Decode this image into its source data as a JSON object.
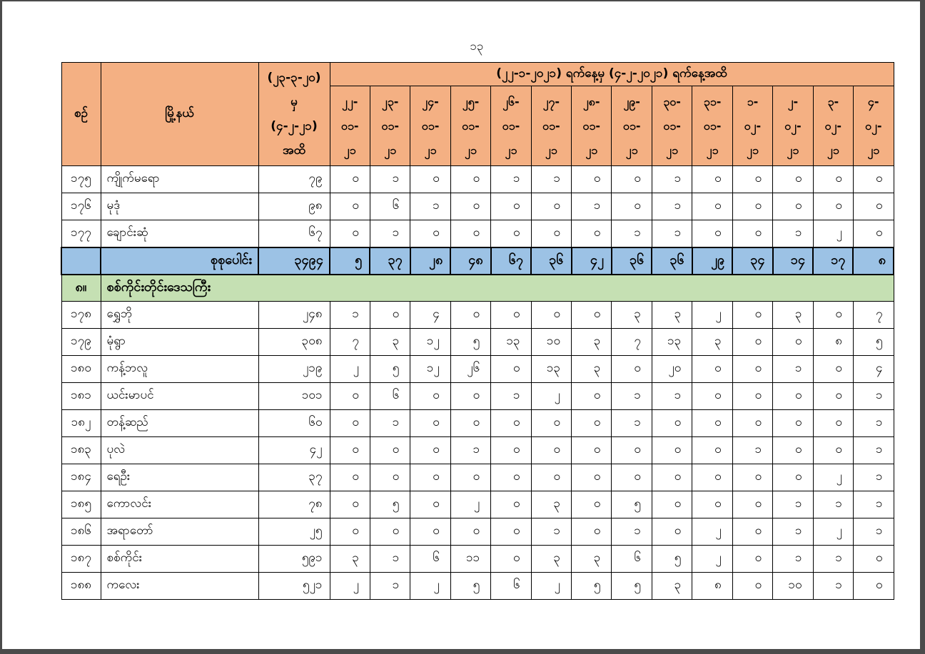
{
  "page": {
    "number": "၁၃"
  },
  "colors": {
    "header_bg": "#F4B083",
    "total_bg": "#9CC2E5",
    "section_bg": "#C5E0B3",
    "border": "#000000",
    "frame": "#4B4B4B"
  },
  "table": {
    "header": {
      "serial": "စဉ်",
      "township": "မြို့နယ်",
      "cumulative_lines": [
        "(၂၃-၃-၂၀)",
        "မှ",
        "(၄-၂-၂၁)",
        "အထိ"
      ],
      "date_range_title": "(၂၂-၁-၂၀၂၁) ရက်နေ့မှ (၄-၂-၂၀၂၁) ရက်နေ့အထိ",
      "dates": [
        [
          "၂၂-",
          "၀၁-",
          "၂၁"
        ],
        [
          "၂၃-",
          "၀၁-",
          "၂၁"
        ],
        [
          "၂၄-",
          "၀၁-",
          "၂၁"
        ],
        [
          "၂၅-",
          "၀၁-",
          "၂၁"
        ],
        [
          "၂၆-",
          "၀၁-",
          "၂၁"
        ],
        [
          "၂၇-",
          "၀၁-",
          "၂၁"
        ],
        [
          "၂၈-",
          "၀၁-",
          "၂၁"
        ],
        [
          "၂၉-",
          "၀၁-",
          "၂၁"
        ],
        [
          "၃၀-",
          "၀၁-",
          "၂၁"
        ],
        [
          "၃၁-",
          "၀၁-",
          "၂၁"
        ],
        [
          "၁-",
          "၀၂-",
          "၂၁"
        ],
        [
          "၂-",
          "၀၂-",
          "၂၁"
        ],
        [
          "၃-",
          "၀၂-",
          "၂၁"
        ],
        [
          "၄-",
          "၀၂-",
          "၂၁"
        ]
      ]
    },
    "body": [
      {
        "type": "row",
        "no": "၁၇၅",
        "township": "ကျိုက်မရော",
        "cumulative": "၇၉",
        "daily": [
          "၀",
          "၁",
          "၀",
          "၀",
          "၁",
          "၁",
          "၀",
          "၀",
          "၁",
          "၀",
          "၀",
          "၀",
          "၀",
          "၀"
        ]
      },
      {
        "type": "row",
        "no": "၁၇၆",
        "township": "မုဒုံ",
        "cumulative": "၉၈",
        "daily": [
          "၀",
          "၆",
          "၁",
          "၀",
          "၀",
          "၀",
          "၁",
          "၀",
          "၁",
          "၀",
          "၀",
          "၀",
          "၀",
          "၀"
        ]
      },
      {
        "type": "row",
        "no": "၁၇၇",
        "township": "ချောင်းဆုံ",
        "cumulative": "၆၇",
        "daily": [
          "၀",
          "၁",
          "၀",
          "၀",
          "၀",
          "၀",
          "၀",
          "၁",
          "၁",
          "၀",
          "၀",
          "၁",
          "၂",
          "၀"
        ]
      },
      {
        "type": "total",
        "label": "စုစုပေါင်း",
        "cumulative": "၃၄၉၄",
        "daily": [
          "၅",
          "၃၇",
          "၂၈",
          "၄၈",
          "၆၇",
          "၃၆",
          "၄၂",
          "၃၆",
          "၃၆",
          "၂၉",
          "၃၄",
          "၁၄",
          "၁၇",
          "၈"
        ]
      },
      {
        "type": "section",
        "no": "၈။",
        "label": "စစ်ကိုင်းတိုင်းဒေသကြီး"
      },
      {
        "type": "row",
        "no": "၁၇၈",
        "township": "ရွှေဘို",
        "cumulative": "၂၄၈",
        "daily": [
          "၁",
          "၀",
          "၄",
          "၀",
          "၀",
          "၀",
          "၀",
          "၃",
          "၃",
          "၂",
          "၀",
          "၃",
          "၀",
          "၇"
        ]
      },
      {
        "type": "row",
        "no": "၁၇၉",
        "township": "မုံရွာ",
        "cumulative": "၃၀၈",
        "daily": [
          "၇",
          "၃",
          "၁၂",
          "၅",
          "၁၃",
          "၁၀",
          "၃",
          "၇",
          "၁၃",
          "၃",
          "၀",
          "၀",
          "၈",
          "၅"
        ]
      },
      {
        "type": "row",
        "no": "၁၈၀",
        "township": "ကန့်ဘလူ",
        "cumulative": "၂၁၉",
        "daily": [
          "၂",
          "၅",
          "၁၂",
          "၂၆",
          "၀",
          "၁၃",
          "၃",
          "၀",
          "၂၀",
          "၀",
          "၀",
          "၁",
          "၀",
          "၄"
        ]
      },
      {
        "type": "row",
        "no": "၁၈၁",
        "township": "ယင်းမာပင်",
        "cumulative": "၁၀၁",
        "daily": [
          "၀",
          "၆",
          "၀",
          "၀",
          "၁",
          "၂",
          "၀",
          "၁",
          "၁",
          "၀",
          "၀",
          "၀",
          "၀",
          "၁"
        ]
      },
      {
        "type": "row",
        "no": "၁၈၂",
        "township": "တန့်ဆည်",
        "cumulative": "၆၀",
        "daily": [
          "၀",
          "၁",
          "၀",
          "၀",
          "၀",
          "၀",
          "၀",
          "၁",
          "၀",
          "၀",
          "၀",
          "၀",
          "၀",
          "၁"
        ]
      },
      {
        "type": "row",
        "no": "၁၈၃",
        "township": "ပုလဲ",
        "cumulative": "၄၂",
        "daily": [
          "၀",
          "၀",
          "၀",
          "၁",
          "၀",
          "၀",
          "၀",
          "၀",
          "၀",
          "၀",
          "၁",
          "၀",
          "၀",
          "၁"
        ]
      },
      {
        "type": "row",
        "no": "၁၈၄",
        "township": "ရေဦး",
        "cumulative": "၃၇",
        "daily": [
          "၀",
          "၀",
          "၀",
          "၀",
          "၀",
          "၀",
          "၀",
          "၀",
          "၀",
          "၀",
          "၀",
          "၀",
          "၂",
          "၁"
        ]
      },
      {
        "type": "row",
        "no": "၁၈၅",
        "township": "ကောလင်း",
        "cumulative": "၇၈",
        "daily": [
          "၀",
          "၅",
          "၀",
          "၂",
          "၀",
          "၃",
          "၀",
          "၅",
          "၀",
          "၀",
          "၀",
          "၁",
          "၁",
          "၁"
        ]
      },
      {
        "type": "row",
        "no": "၁၈၆",
        "township": "အရာတော်",
        "cumulative": "၂၅",
        "daily": [
          "၀",
          "၀",
          "၀",
          "၀",
          "၀",
          "၁",
          "၀",
          "၁",
          "၀",
          "၂",
          "၀",
          "၁",
          "၂",
          "၁"
        ]
      },
      {
        "type": "row",
        "no": "၁၈၇",
        "township": "စစ်ကိုင်း",
        "cumulative": "၅၉၁",
        "daily": [
          "၃",
          "၁",
          "၆",
          "၁၁",
          "၀",
          "၃",
          "၃",
          "၆",
          "၅",
          "၂",
          "၀",
          "၁",
          "၁",
          "၀"
        ]
      },
      {
        "type": "row",
        "no": "၁၈၈",
        "township": "ကလေး",
        "cumulative": "၅၂၁",
        "daily": [
          "၂",
          "၁",
          "၂",
          "၅",
          "၆",
          "၂",
          "၅",
          "၅",
          "၃",
          "၈",
          "၀",
          "၁၀",
          "၁",
          "၀"
        ]
      }
    ]
  }
}
